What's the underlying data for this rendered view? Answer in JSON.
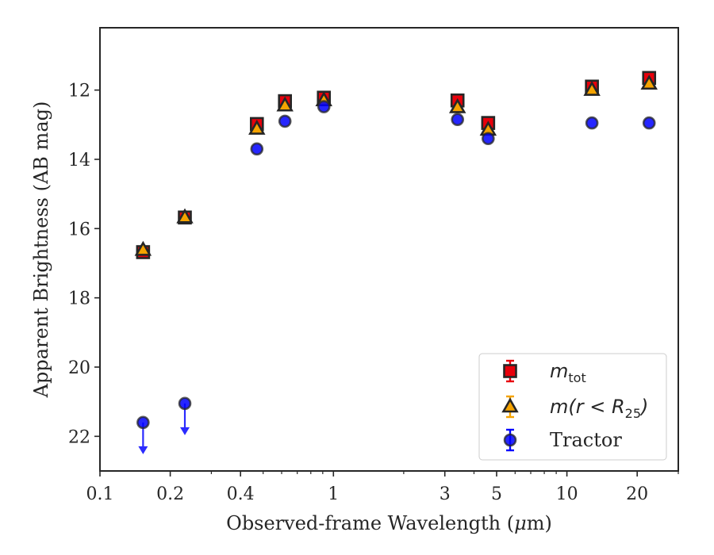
{
  "chart_data": {
    "type": "scatter",
    "xlabel_prefix": "Observed-frame Wavelength (",
    "xlabel_unit": "μ",
    "xlabel_suffix": "m)",
    "ylabel": "Apparent Brightness (AB mag)",
    "x_scale": "log",
    "xlim": [
      0.1,
      30
    ],
    "ylim": [
      23,
      10.2
    ],
    "y_inverted": true,
    "x_ticks": [
      {
        "value": 0.1,
        "label": "0.1"
      },
      {
        "value": 0.2,
        "label": "0.2"
      },
      {
        "value": 0.4,
        "label": "0.4"
      },
      {
        "value": 1,
        "label": "1"
      },
      {
        "value": 3,
        "label": "3"
      },
      {
        "value": 5,
        "label": "5"
      },
      {
        "value": 10,
        "label": "10"
      },
      {
        "value": 20,
        "label": "20"
      }
    ],
    "x_minor_ticks": [
      0.3,
      0.5,
      0.6,
      0.7,
      0.8,
      0.9,
      2,
      4,
      6,
      7,
      8,
      9,
      30
    ],
    "y_ticks": [
      {
        "value": 12,
        "label": "12"
      },
      {
        "value": 14,
        "label": "14"
      },
      {
        "value": 16,
        "label": "16"
      },
      {
        "value": 18,
        "label": "18"
      },
      {
        "value": 20,
        "label": "20"
      },
      {
        "value": 22,
        "label": "22"
      }
    ],
    "legend_position": "lower-right",
    "series": [
      {
        "name": "m_tot",
        "legend_symbol": "m",
        "legend_subscript": "tot",
        "marker": "square",
        "color": "#e8000b",
        "edge": "#262626",
        "points": [
          {
            "x": 0.153,
            "y": 16.68
          },
          {
            "x": 0.231,
            "y": 15.68
          },
          {
            "x": 0.47,
            "y": 12.98
          },
          {
            "x": 0.62,
            "y": 12.32
          },
          {
            "x": 0.91,
            "y": 12.22
          },
          {
            "x": 3.4,
            "y": 12.3
          },
          {
            "x": 4.6,
            "y": 12.95
          },
          {
            "x": 12.8,
            "y": 11.9
          },
          {
            "x": 22.5,
            "y": 11.65
          }
        ]
      },
      {
        "name": "m(r<R25)",
        "legend_parts": [
          "m(r < R",
          "25",
          ")"
        ],
        "marker": "triangle",
        "color": "#f5a300",
        "edge": "#262626",
        "points": [
          {
            "x": 0.153,
            "y": 16.62
          },
          {
            "x": 0.231,
            "y": 15.68
          },
          {
            "x": 0.47,
            "y": 13.12
          },
          {
            "x": 0.62,
            "y": 12.45
          },
          {
            "x": 0.91,
            "y": 12.3
          },
          {
            "x": 3.4,
            "y": 12.5
          },
          {
            "x": 4.6,
            "y": 13.15
          },
          {
            "x": 12.8,
            "y": 12.0
          },
          {
            "x": 22.5,
            "y": 11.82
          }
        ]
      },
      {
        "name": "Tractor",
        "marker": "circle",
        "color": "#0000ff",
        "edge": "#262626",
        "points": [
          {
            "x": 0.153,
            "y": 21.6,
            "upper_limit": true
          },
          {
            "x": 0.231,
            "y": 21.05,
            "upper_limit": true
          },
          {
            "x": 0.47,
            "y": 13.7
          },
          {
            "x": 0.62,
            "y": 12.9
          },
          {
            "x": 0.91,
            "y": 12.48
          },
          {
            "x": 3.4,
            "y": 12.85
          },
          {
            "x": 4.6,
            "y": 13.4
          },
          {
            "x": 12.8,
            "y": 12.95
          },
          {
            "x": 22.5,
            "y": 12.95
          }
        ]
      }
    ]
  }
}
